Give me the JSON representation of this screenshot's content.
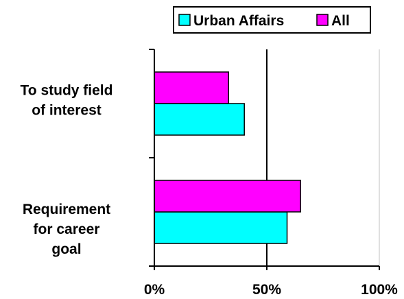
{
  "chart_data": {
    "type": "bar",
    "orientation": "horizontal",
    "categories": [
      "To study field of interest",
      "Requirement for career goal"
    ],
    "category_lines": [
      [
        "To study field",
        "of interest"
      ],
      [
        "Requirement",
        "for career",
        "goal"
      ]
    ],
    "series": [
      {
        "name": "Urban Affairs",
        "color": "#00ffff",
        "values": [
          40,
          59
        ]
      },
      {
        "name": "All",
        "color": "#ff00ff",
        "values": [
          33,
          65
        ]
      }
    ],
    "x_ticks": [
      {
        "value": 0,
        "label": "0%"
      },
      {
        "value": 50,
        "label": "50%"
      },
      {
        "value": 100,
        "label": "100%"
      }
    ],
    "xlim": [
      0,
      100
    ],
    "gridlines": [
      50,
      100
    ],
    "legend": {
      "position": "top-right",
      "entries": [
        "Urban Affairs",
        "All"
      ]
    },
    "title": "",
    "xlabel": "",
    "ylabel": ""
  }
}
